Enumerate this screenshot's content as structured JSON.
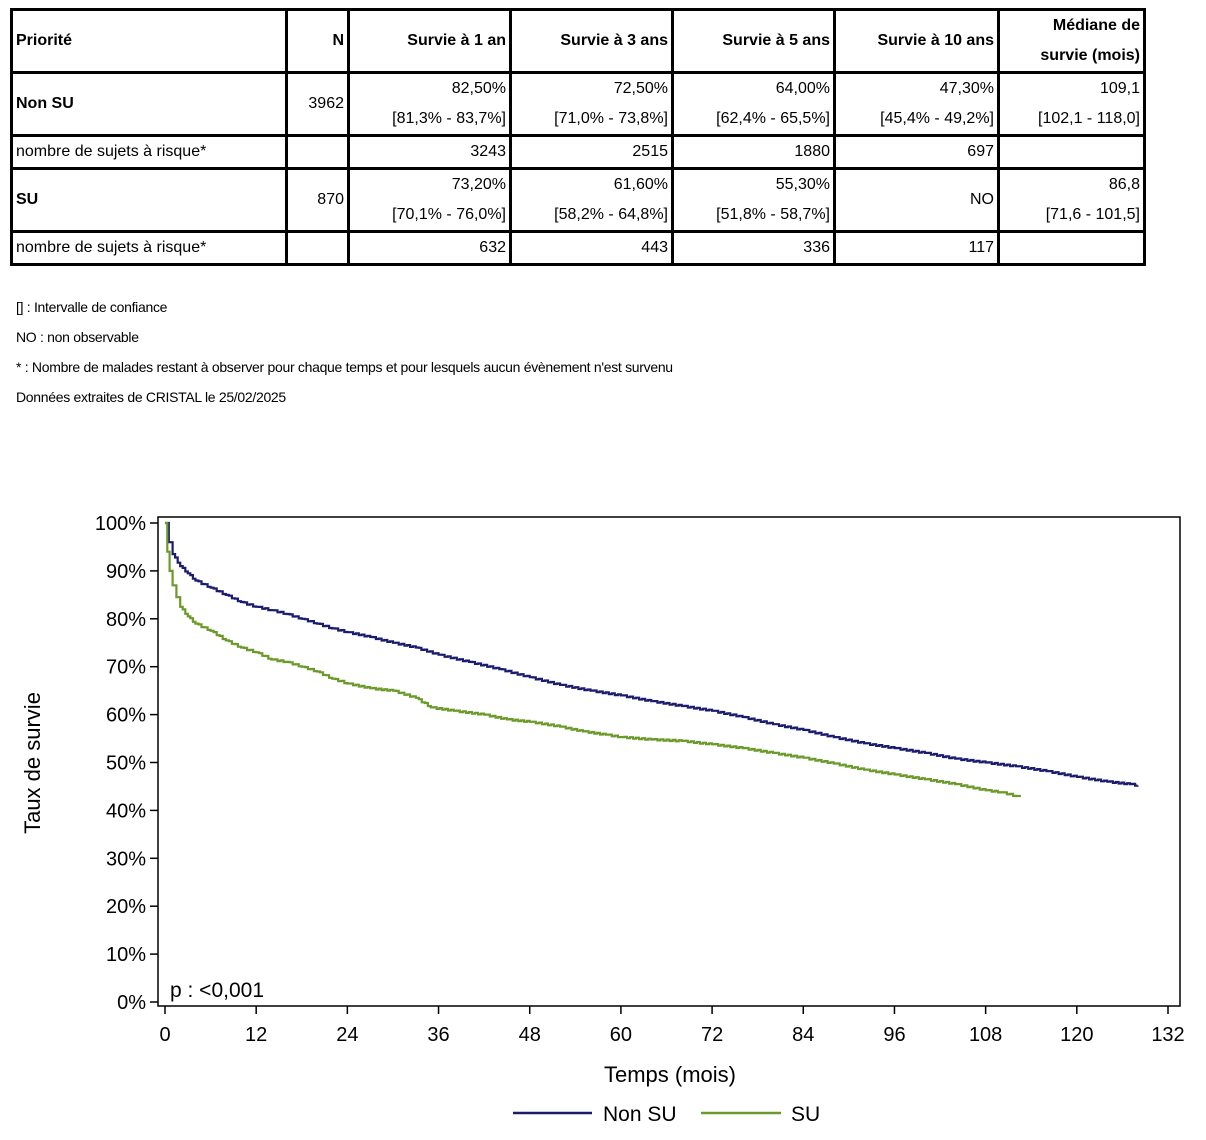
{
  "table": {
    "headers": {
      "priorite": "Priorité",
      "n": "N",
      "s1": "Survie à 1 an",
      "s3": "Survie à 3 ans",
      "s5": "Survie à 5 ans",
      "s10": "Survie à 10 ans",
      "median_l1": "Médiane de",
      "median_l2": "survie (mois)"
    },
    "rows": [
      {
        "label": "Non SU",
        "n": "3962",
        "s1": "82,50%",
        "s1_ci": "[81,3% - 83,7%]",
        "s3": "72,50%",
        "s3_ci": "[71,0% - 73,8%]",
        "s5": "64,00%",
        "s5_ci": "[62,4% - 65,5%]",
        "s10": "47,30%",
        "s10_ci": "[45,4% - 49,2%]",
        "median": "109,1",
        "median_ci": "[102,1 - 118,0]",
        "risk_label": "nombre de sujets à risque*",
        "risk": [
          "3243",
          "2515",
          "1880",
          "697"
        ]
      },
      {
        "label": "SU",
        "n": "870",
        "s1": "73,20%",
        "s1_ci": "[70,1% - 76,0%]",
        "s3": "61,60%",
        "s3_ci": "[58,2% - 64,8%]",
        "s5": "55,30%",
        "s5_ci": "[51,8% - 58,7%]",
        "s10": "NO",
        "s10_ci": "",
        "median": "86,8",
        "median_ci": "[71,6 - 101,5]",
        "risk_label": "nombre de sujets à risque*",
        "risk": [
          "632",
          "443",
          "336",
          "117"
        ]
      }
    ]
  },
  "notes": [
    "[] : Intervalle de confiance",
    "NO : non observable",
    "* : Nombre de malades restant à observer pour chaque temps et pour lesquels aucun évènement n'est survenu",
    "Données extraites de CRISTAL le 25/02/2025"
  ],
  "chart_data": {
    "type": "line",
    "xlabel": "Temps (mois)",
    "ylabel": "Taux de survie",
    "xlim": [
      0,
      132
    ],
    "ylim": [
      0,
      100
    ],
    "xticks": [
      "0",
      "12",
      "24",
      "36",
      "48",
      "60",
      "72",
      "84",
      "96",
      "108",
      "120",
      "132"
    ],
    "yticks": [
      "0%",
      "10%",
      "20%",
      "30%",
      "40%",
      "50%",
      "60%",
      "70%",
      "80%",
      "90%",
      "100%"
    ],
    "annotation": "p : <0,001",
    "legend_position": "bottom",
    "series": [
      {
        "name": "Non SU",
        "color": "#1c1c6e",
        "points": [
          [
            0,
            100
          ],
          [
            0.5,
            96
          ],
          [
            1,
            93.5
          ],
          [
            2,
            91
          ],
          [
            3,
            89.5
          ],
          [
            4,
            88
          ],
          [
            6,
            86.5
          ],
          [
            8,
            85
          ],
          [
            10,
            83.5
          ],
          [
            12,
            82.5
          ],
          [
            14,
            81.8
          ],
          [
            16,
            81
          ],
          [
            18,
            80
          ],
          [
            20,
            79
          ],
          [
            22,
            78
          ],
          [
            24,
            77.2
          ],
          [
            27,
            76.2
          ],
          [
            30,
            75
          ],
          [
            33,
            74
          ],
          [
            36,
            72.5
          ],
          [
            40,
            71
          ],
          [
            44,
            69.5
          ],
          [
            48,
            67.8
          ],
          [
            52,
            66.2
          ],
          [
            56,
            65
          ],
          [
            60,
            64
          ],
          [
            64,
            62.8
          ],
          [
            68,
            61.8
          ],
          [
            72,
            60.8
          ],
          [
            76,
            59.5
          ],
          [
            80,
            58
          ],
          [
            84,
            56.8
          ],
          [
            88,
            55.3
          ],
          [
            92,
            54
          ],
          [
            96,
            53
          ],
          [
            100,
            52
          ],
          [
            104,
            50.8
          ],
          [
            108,
            50
          ],
          [
            112,
            49.2
          ],
          [
            116,
            48.2
          ],
          [
            120,
            47
          ],
          [
            124,
            46
          ],
          [
            127,
            45.5
          ],
          [
            128,
            45.2
          ]
        ]
      },
      {
        "name": "SU",
        "color": "#6b9a2a",
        "points": [
          [
            0,
            100
          ],
          [
            0.3,
            94
          ],
          [
            0.6,
            90
          ],
          [
            1,
            87
          ],
          [
            1.5,
            84.5
          ],
          [
            2,
            82.5
          ],
          [
            3,
            80.5
          ],
          [
            4,
            79
          ],
          [
            6,
            77.5
          ],
          [
            8,
            75.5
          ],
          [
            10,
            74
          ],
          [
            12,
            73
          ],
          [
            14,
            71.5
          ],
          [
            16,
            71
          ],
          [
            18,
            70
          ],
          [
            20,
            69
          ],
          [
            22,
            67.5
          ],
          [
            24,
            66.5
          ],
          [
            27,
            65.5
          ],
          [
            30,
            65
          ],
          [
            33,
            63.5
          ],
          [
            35,
            61.5
          ],
          [
            38,
            60.8
          ],
          [
            42,
            60
          ],
          [
            45,
            59
          ],
          [
            48,
            58.5
          ],
          [
            52,
            57.5
          ],
          [
            55,
            56.5
          ],
          [
            58,
            55.8
          ],
          [
            60,
            55.3
          ],
          [
            64,
            54.8
          ],
          [
            68,
            54.5
          ],
          [
            72,
            53.8
          ],
          [
            76,
            53
          ],
          [
            80,
            52
          ],
          [
            84,
            51
          ],
          [
            88,
            49.8
          ],
          [
            92,
            48.5
          ],
          [
            96,
            47.5
          ],
          [
            100,
            46.5
          ],
          [
            104,
            45.5
          ],
          [
            108,
            44.2
          ],
          [
            110,
            43.8
          ],
          [
            112,
            43
          ],
          [
            112.5,
            42.8
          ]
        ]
      }
    ]
  }
}
